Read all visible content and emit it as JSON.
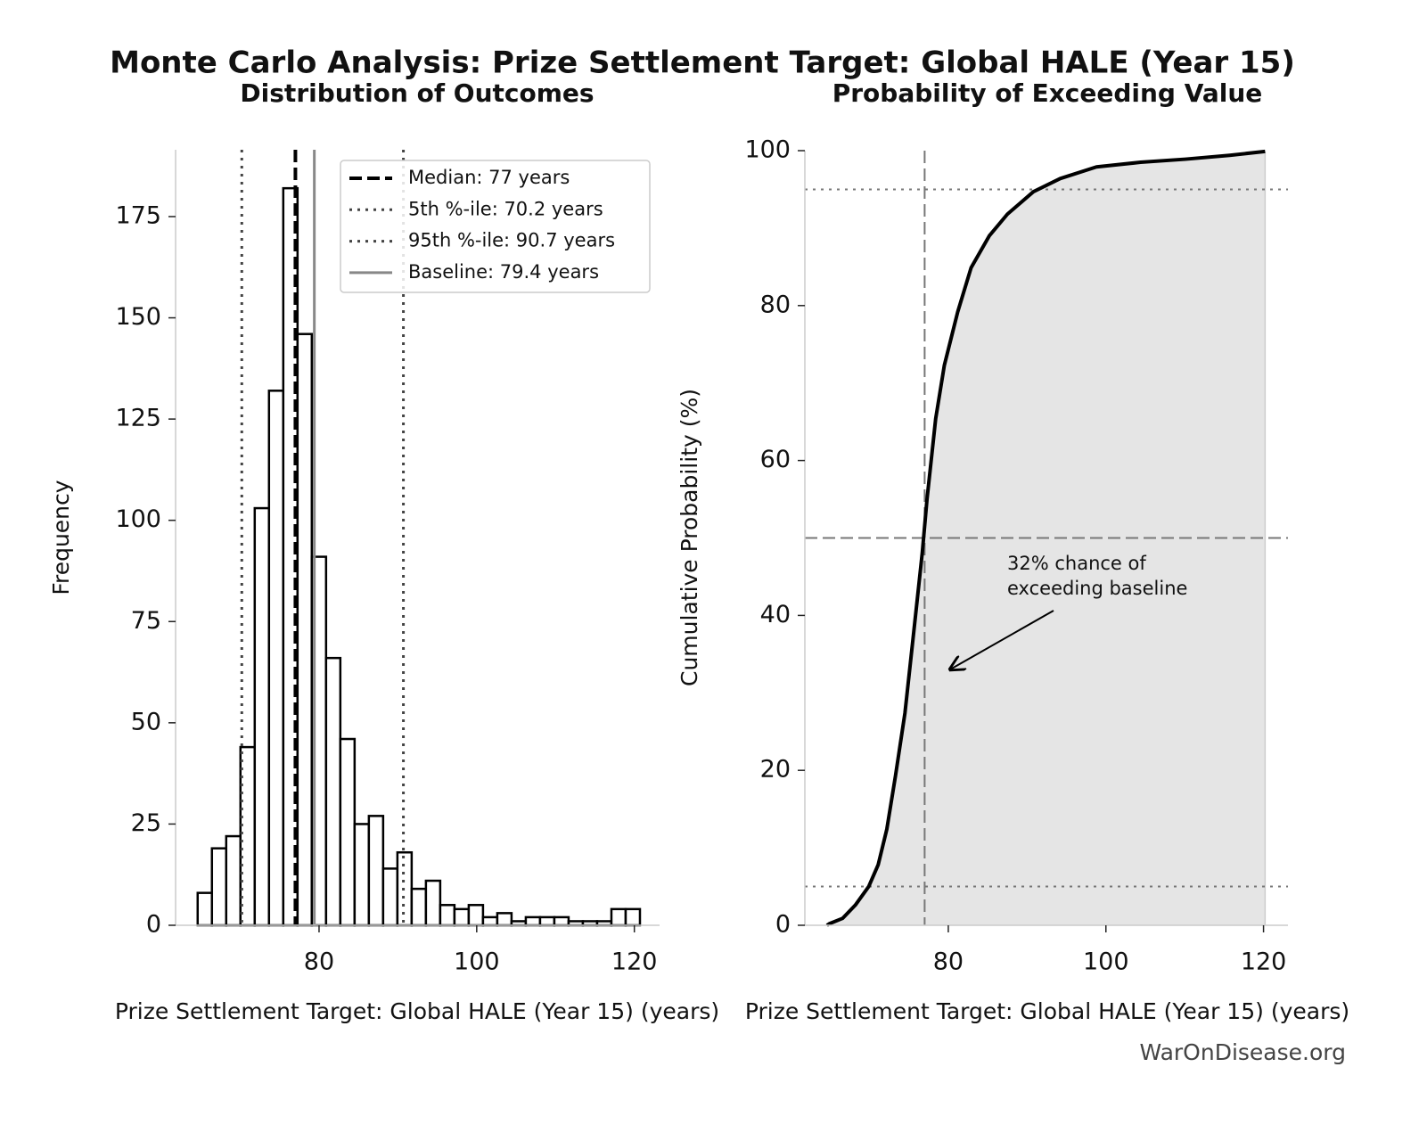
{
  "title": "Monte Carlo Analysis: Prize Settlement Target: Global HALE (Year 15)",
  "source": "WarOnDisease.org",
  "chart_data": [
    {
      "type": "histogram",
      "title": "Distribution of Outcomes",
      "x_label": "Prize Settlement Target: Global HALE (Year 15) (years)",
      "y_label": "Frequency",
      "bins": [
        64.6,
        66.41,
        68.22,
        70.03,
        71.84,
        73.65,
        75.46,
        77.27,
        79.08,
        80.89,
        82.7,
        84.51,
        86.32,
        88.13,
        89.94,
        91.75,
        93.56,
        95.37,
        97.18,
        98.99,
        100.8,
        102.61,
        104.42,
        106.23,
        108.04,
        109.85,
        111.66,
        113.47,
        115.28,
        117.09,
        118.9,
        120.71
      ],
      "counts": [
        8,
        19,
        22,
        44,
        103,
        132,
        182,
        146,
        91,
        66,
        46,
        25,
        27,
        14,
        18,
        9,
        11,
        5,
        4,
        5,
        2,
        3,
        1,
        2,
        2,
        2,
        1,
        1,
        1,
        4,
        4
      ],
      "color": "#ffffff",
      "edge_color": "#000000",
      "xlim": [
        61.8,
        123.2
      ],
      "ylim": [
        0,
        191.5
      ],
      "xticks": [
        80,
        100,
        120
      ],
      "yticks": [
        0,
        25,
        50,
        75,
        100,
        125,
        150,
        175
      ],
      "legend": "upper right",
      "reference_lines": [
        {
          "name": "Median: 77 years",
          "value": 77,
          "style": "dashed",
          "color": "#000000"
        },
        {
          "name": "5th %-ile: 70.2 years",
          "value": 70.2,
          "style": "dotted",
          "color": "#444444"
        },
        {
          "name": "95th %-ile: 90.7 years",
          "value": 90.7,
          "style": "dotted",
          "color": "#444444"
        },
        {
          "name": "Baseline: 79.4 years",
          "value": 79.4,
          "style": "solid",
          "color": "#888888"
        }
      ]
    },
    {
      "type": "line",
      "title": "Probability of Exceeding Value",
      "x_label": "Prize Settlement Target: Global HALE (Year 15) (years)",
      "y_label": "Cumulative Probability (%)",
      "x": [
        64.6,
        64.9,
        66.6,
        68.2,
        69.9,
        71.1,
        72.2,
        73.3,
        74.5,
        75.6,
        76.7,
        77.3,
        78.4,
        79.5,
        81.2,
        82.9,
        85.2,
        87.5,
        90.8,
        94.2,
        98.8,
        104.4,
        110.1,
        115.7,
        120.2
      ],
      "values": [
        0,
        0.2,
        0.9,
        2.6,
        5,
        7.8,
        12.4,
        19.3,
        27.4,
        37.7,
        48.1,
        55,
        65.4,
        72.3,
        79.2,
        84.9,
        89,
        91.8,
        94.7,
        96.4,
        97.9,
        98.5,
        98.9,
        99.4,
        99.9
      ],
      "color": "#000000",
      "fill_color": "#e5e5e5",
      "xlim": [
        61.8,
        123.1
      ],
      "ylim": [
        0,
        100
      ],
      "xticks": [
        80,
        100,
        120
      ],
      "yticks": [
        0,
        20,
        40,
        60,
        80,
        100
      ],
      "vlines": [
        {
          "value": 77,
          "style": "dashed",
          "color": "#777777"
        }
      ],
      "hlines": [
        {
          "value": 5,
          "style": "dotted",
          "color": "#777777"
        },
        {
          "value": 50,
          "style": "dashed",
          "color": "#777777"
        },
        {
          "value": 95,
          "style": "dotted",
          "color": "#777777"
        }
      ],
      "annotation": [
        "32% chance of",
        "exceeding baseline"
      ]
    }
  ]
}
